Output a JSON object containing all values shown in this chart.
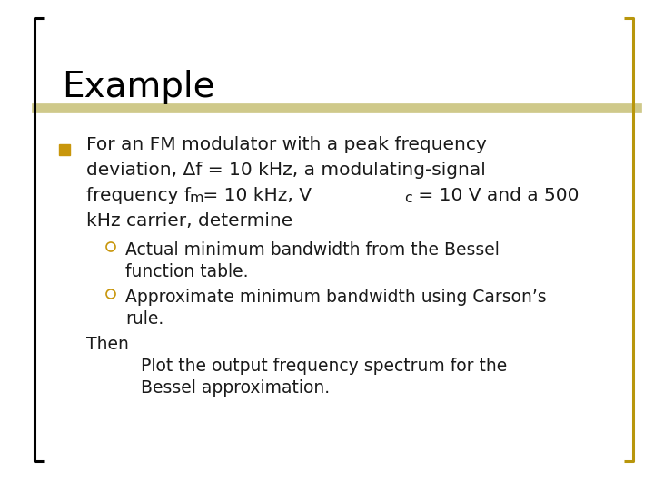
{
  "title": "Example",
  "title_fontsize": 28,
  "title_color": "#000000",
  "background_color": "#ffffff",
  "bracket_color_left": "#000000",
  "bracket_color_right": "#b8960c",
  "divider_color": "#cfc98a",
  "bullet_square_color": "#c8960c",
  "sub_bullet_color": "#c8960c",
  "text_color": "#1a1a1a",
  "main_fontsize": 14.5,
  "sub_fontsize": 13.5,
  "line1": "For an FM modulator with a peak frequency",
  "line2": "deviation, Δf = 10 kHz, a modulating-signal",
  "line3a": "frequency f",
  "line3m": "m",
  "line3b": " = 10 kHz, V",
  "line3c": "c",
  "line3d": " = 10 V and a 500",
  "line4": "kHz carrier, determine",
  "sub1a": "Actual minimum bandwidth from the Bessel",
  "sub1b": "function table.",
  "sub2a": "Approximate minimum bandwidth using Carson’s",
  "sub2b": "rule.",
  "then": "Then",
  "then1": "Plot the output frequency spectrum for the",
  "then2": "Bessel approximation."
}
